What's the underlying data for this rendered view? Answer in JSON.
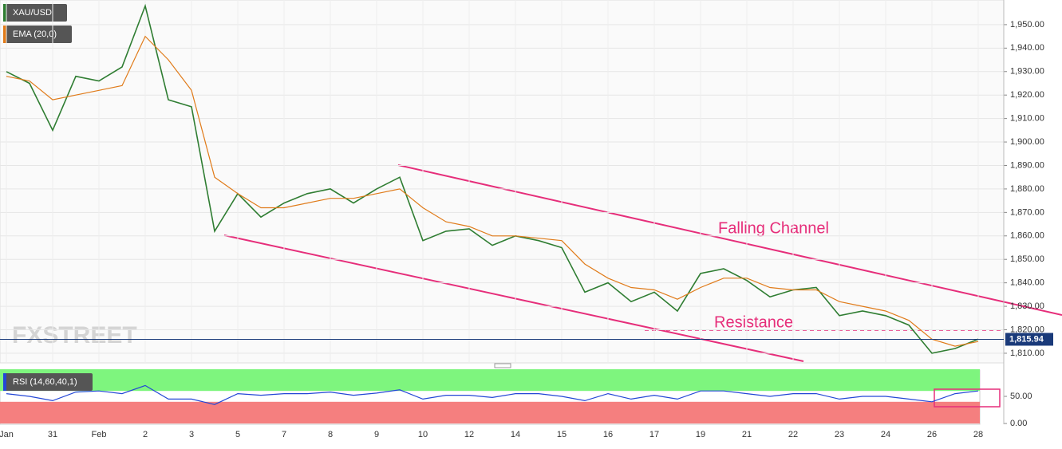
{
  "chart_data": [
    {
      "type": "line",
      "watermark": "FXSTREET",
      "categories": [
        "Jan",
        null,
        "31",
        null,
        "Feb",
        null,
        "2",
        null,
        "3",
        null,
        "5",
        null,
        "7",
        null,
        "8",
        null,
        "9",
        null,
        "10",
        null,
        "12",
        null,
        "14",
        null,
        "15",
        null,
        "16",
        null,
        "17",
        null,
        "19",
        null,
        "21",
        null,
        "22",
        null,
        "23",
        null,
        "24",
        null,
        "26",
        null,
        "28"
      ],
      "series": [
        {
          "name": "XAU/USD",
          "color": "#2f7d32",
          "values": [
            1930,
            1925,
            1905,
            1928,
            1926,
            1932,
            1958,
            1918,
            1915,
            1862,
            1878,
            1868,
            1874,
            1878,
            1880,
            1874,
            1880,
            1885,
            1858,
            1862,
            1863,
            1856,
            1860,
            1858,
            1855,
            1836,
            1840,
            1832,
            1836,
            1828,
            1844,
            1846,
            1841,
            1834,
            1837,
            1838,
            1826,
            1828,
            1826,
            1822,
            1810,
            1812,
            1816
          ]
        },
        {
          "name": "EMA (20,0)",
          "color": "#e07b1a",
          "values": [
            1928,
            1926,
            1918,
            1920,
            1922,
            1924,
            1945,
            1935,
            1922,
            1885,
            1878,
            1872,
            1872,
            1874,
            1876,
            1876,
            1878,
            1880,
            1872,
            1866,
            1864,
            1860,
            1860,
            1859,
            1858,
            1848,
            1842,
            1838,
            1837,
            1833,
            1838,
            1842,
            1842,
            1838,
            1837,
            1837,
            1832,
            1830,
            1828,
            1824,
            1816,
            1813,
            1815
          ]
        }
      ],
      "ylim": [
        1805.9,
        1960.5
      ],
      "yticks": [
        {
          "value": 1810,
          "label": "1,810.00"
        },
        {
          "value": 1820,
          "label": "1,820.00"
        },
        {
          "value": 1830,
          "label": "1,830.00"
        },
        {
          "value": 1840,
          "label": "1,840.00"
        },
        {
          "value": 1850,
          "label": "1,850.00"
        },
        {
          "value": 1860,
          "label": "1,860.00"
        },
        {
          "value": 1870,
          "label": "1,870.00"
        },
        {
          "value": 1880,
          "label": "1,880.00"
        },
        {
          "value": 1890,
          "label": "1,890.00"
        },
        {
          "value": 1900,
          "label": "1,900.00"
        },
        {
          "value": 1910,
          "label": "1,910.00"
        },
        {
          "value": 1920,
          "label": "1,920.00"
        },
        {
          "value": 1930,
          "label": "1,930.00"
        },
        {
          "value": 1940,
          "label": "1,940.00"
        },
        {
          "value": 1950,
          "label": "1,950.00"
        }
      ],
      "current_price": {
        "value": 1815.94,
        "label": "1,815.94"
      },
      "annotations": [
        "Falling Channel",
        "Resistance"
      ],
      "grid": true
    },
    {
      "type": "line",
      "series": [
        {
          "name": "RSI (14,60,40,1)",
          "color": "#2347d6",
          "values": [
            55,
            50,
            42,
            58,
            60,
            55,
            70,
            45,
            45,
            35,
            55,
            52,
            55,
            55,
            58,
            52,
            56,
            62,
            45,
            52,
            52,
            48,
            55,
            55,
            50,
            42,
            55,
            45,
            52,
            45,
            60,
            60,
            55,
            50,
            55,
            55,
            45,
            50,
            50,
            45,
            40,
            55,
            60
          ]
        }
      ],
      "ylim": [
        0,
        100
      ],
      "yticks": [
        {
          "value": 0,
          "label": "0.00"
        },
        {
          "value": 50,
          "label": "50.00"
        }
      ],
      "zones": [
        {
          "from": 60,
          "to": 100,
          "color": "#7ef57e"
        },
        {
          "from": 0,
          "to": 40,
          "color": "#f57f7f"
        }
      ]
    }
  ]
}
